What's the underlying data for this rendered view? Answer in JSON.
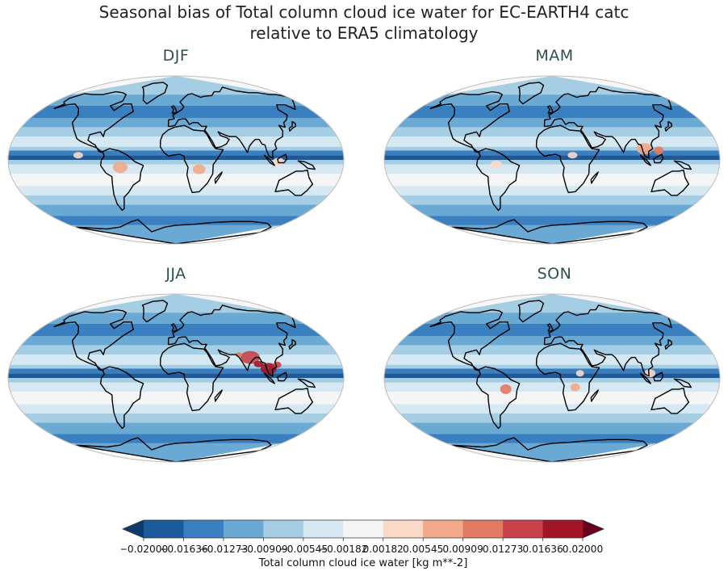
{
  "figure": {
    "title_line1": "Seasonal bias of Total column cloud ice water for EC-EARTH4 catc",
    "title_line2": "relative to ERA5 climatology"
  },
  "chart_data": {
    "type": "heatmap",
    "title": "Seasonal bias of Total column cloud ice water for EC-EARTH4 catc relative to ERA5 climatology",
    "panels": [
      {
        "label": "DJF"
      },
      {
        "label": "MAM"
      },
      {
        "label": "JJA"
      },
      {
        "label": "SON"
      }
    ],
    "colorbar": {
      "label": "Total column cloud ice water [kg m**-2]",
      "boundaries": [
        -0.02,
        -0.01636,
        -0.01273,
        -0.00909,
        -0.00545,
        -0.00182,
        0.00182,
        0.00545,
        0.00909,
        0.01273,
        0.01636,
        0.02
      ],
      "tick_labels": [
        "−0.02000",
        "−0.01636",
        "−0.01273",
        "−0.00909",
        "−0.00545",
        "−0.00182",
        "0.00182",
        "0.00545",
        "0.00909",
        "0.01273",
        "0.01636",
        "0.02000"
      ],
      "colors": [
        "#1c5a9c",
        "#3a7fbf",
        "#6aa9d4",
        "#a5cde3",
        "#d6e8f2",
        "#f5f5f5",
        "#fbd9c8",
        "#f2a98a",
        "#e07a62",
        "#c8424a",
        "#a01527"
      ],
      "extend_under_color": "#0f3a6b",
      "extend_over_color": "#67001f"
    },
    "land_outline_color": "#000000",
    "ocean_base_color": "#f7f7f7"
  }
}
